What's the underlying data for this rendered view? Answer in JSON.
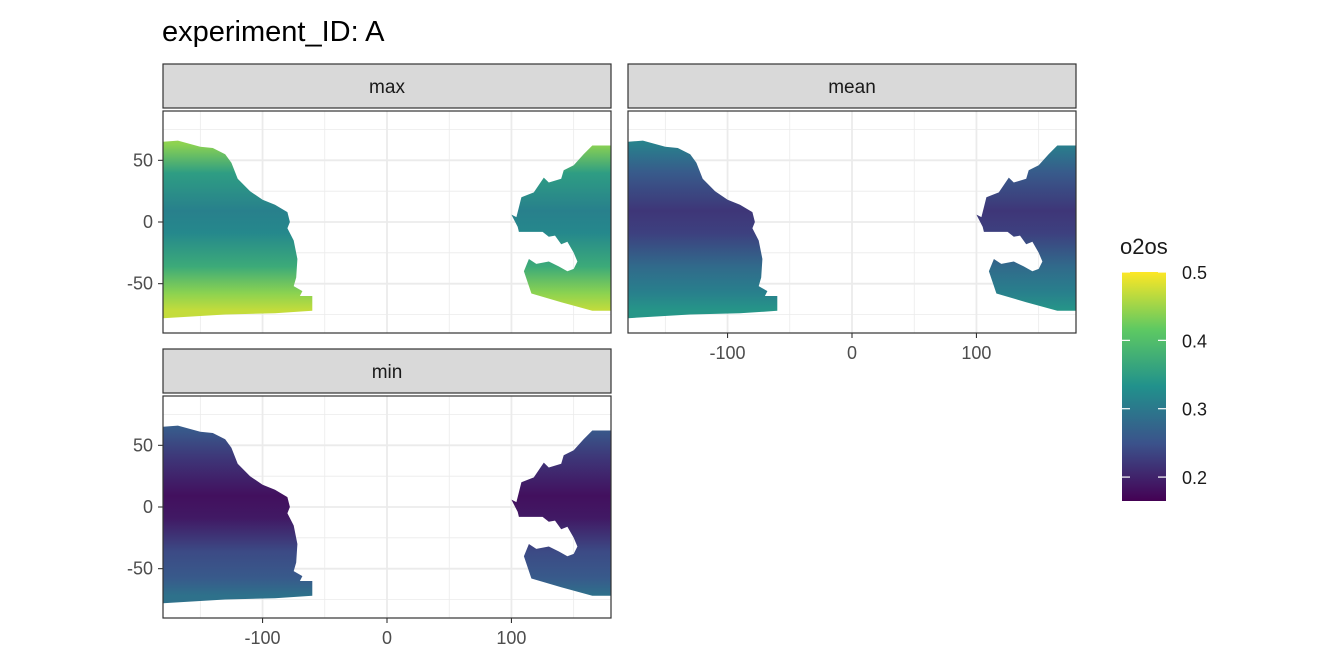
{
  "chart_data": {
    "type": "heatmap",
    "title": "experiment_ID: A",
    "xlabel": "",
    "ylabel": "",
    "facets": [
      {
        "name": "max",
        "level": 0.33,
        "polar_level": 0.44
      },
      {
        "name": "mean",
        "level": 0.24,
        "polar_level": 0.31
      },
      {
        "name": "min",
        "level": 0.2,
        "polar_level": 0.26
      }
    ],
    "x_ticks": [
      -100,
      0,
      100
    ],
    "x_tick_labels": [
      "-100",
      "0",
      "100"
    ],
    "y_ticks": [
      50,
      0,
      -50
    ],
    "y_tick_labels": [
      "50",
      "0",
      "-50"
    ],
    "xlim": [
      -180,
      180
    ],
    "ylim": [
      -90,
      90
    ],
    "legend": {
      "title": "o2os",
      "position": "right",
      "range": [
        0.165,
        0.5
      ],
      "ticks": [
        0.5,
        0.4,
        0.3,
        0.2
      ],
      "tick_labels": [
        "0.5",
        "0.4",
        "0.3",
        "0.2"
      ],
      "colormap": "viridis"
    },
    "grid": true
  },
  "colors": {
    "strip_fill": "#d9d9d9",
    "panel_border": "#333333",
    "grid": "#ebebeb",
    "viridis": [
      "#440154",
      "#3b528b",
      "#21918c",
      "#5ec962",
      "#fde725"
    ]
  }
}
